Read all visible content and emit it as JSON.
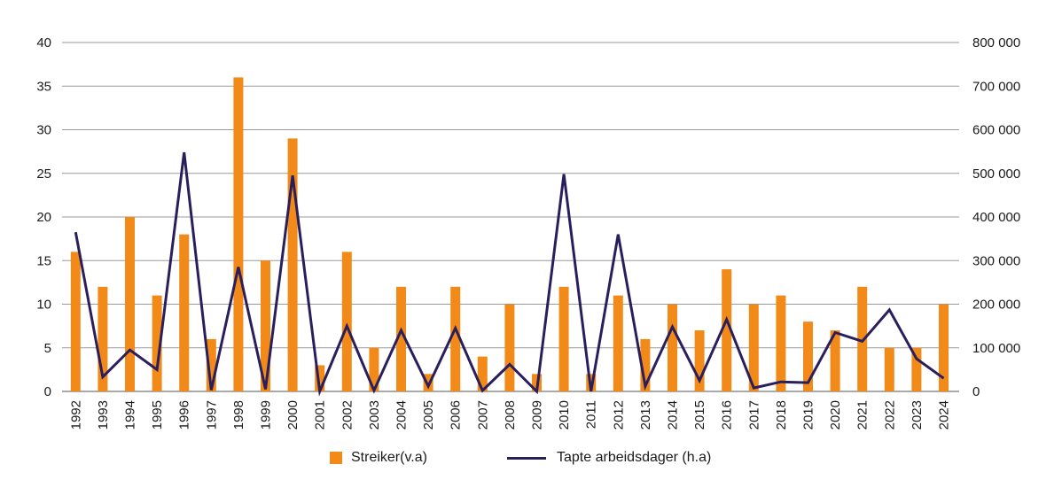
{
  "chart_data": {
    "type": "bar",
    "categories": [
      "1992",
      "1993",
      "1994",
      "1995",
      "1996",
      "1997",
      "1998",
      "1999",
      "2000",
      "2001",
      "2002",
      "2003",
      "2004",
      "2005",
      "2006",
      "2007",
      "2008",
      "2009",
      "2010",
      "2011",
      "2012",
      "2013",
      "2014",
      "2015",
      "2016",
      "2017",
      "2018",
      "2019",
      "2020",
      "2021",
      "2022",
      "2023",
      "2024"
    ],
    "series": [
      {
        "name": "Streiker(v.a)",
        "type": "bar",
        "axis": "left",
        "color": "#F28A1A",
        "values": [
          16,
          12,
          20,
          11,
          18,
          6,
          36,
          15,
          29,
          3,
          16,
          5,
          12,
          2,
          12,
          4,
          10,
          2,
          12,
          2,
          11,
          6,
          10,
          7,
          14,
          10,
          11,
          8,
          7,
          12,
          5,
          5,
          10
        ]
      },
      {
        "name": "Tapte arbeidsdager (h.a)",
        "type": "line",
        "axis": "right",
        "color": "#2A1F5C",
        "values": [
          365000,
          33000,
          95000,
          50000,
          548000,
          3000,
          285000,
          5000,
          495000,
          0,
          150000,
          2000,
          140000,
          12000,
          145000,
          2000,
          62000,
          0,
          498000,
          0,
          360000,
          12000,
          148000,
          25000,
          165000,
          8000,
          22000,
          20000,
          135000,
          115000,
          187000,
          75000,
          30000
        ]
      }
    ],
    "y_left": {
      "min": 0,
      "max": 40,
      "ticks": [
        "0",
        "5",
        "10",
        "15",
        "20",
        "25",
        "30",
        "35",
        "40"
      ]
    },
    "y_right": {
      "min": 0,
      "max": 800000,
      "ticks": [
        "0",
        "100 000",
        "200 000",
        "300 000",
        "400 000",
        "500 000",
        "600 000",
        "700 000",
        "800 000"
      ]
    },
    "grid": true,
    "legend_position": "bottom"
  }
}
